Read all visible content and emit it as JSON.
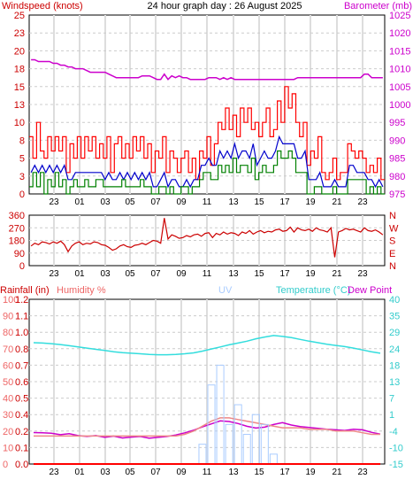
{
  "chart_data": [
    {
      "type": "line",
      "title": "24 hour graph day : 26 August 2025",
      "left_axis_label": "Windspeed (knots)",
      "right_axis_label": "Barometer (mb)",
      "left_ylim": [
        0,
        25
      ],
      "left_ticks": [
        "0",
        "3",
        "5",
        "8",
        "10",
        "13",
        "15",
        "18",
        "20",
        "23",
        "25"
      ],
      "right_ylim": [
        975,
        1025
      ],
      "right_ticks": [
        "975",
        "980",
        "985",
        "990",
        "995",
        "1000",
        "1005",
        "1010",
        "1015",
        "1020",
        "1025"
      ],
      "x_ticks": [
        "23",
        "01",
        "03",
        "05",
        "07",
        "09",
        "11",
        "13",
        "15",
        "17",
        "19",
        "21",
        "23"
      ],
      "grid": true,
      "series": [
        {
          "name": "Wind gust",
          "color": "#ff0000",
          "axis": "left",
          "style": "step",
          "values": [
            8,
            5,
            10,
            6,
            5,
            8,
            6,
            8,
            6,
            8,
            3,
            7,
            5,
            8,
            5,
            8,
            6,
            8,
            5,
            7,
            5,
            8,
            3,
            7,
            8,
            5,
            7,
            5,
            8,
            6,
            8,
            5,
            7,
            3,
            6,
            5,
            8,
            3,
            6,
            5,
            3,
            5,
            6,
            3,
            5,
            2,
            6,
            5,
            8,
            4,
            7,
            10,
            9,
            12,
            9,
            11,
            8,
            12,
            10,
            12,
            9,
            10,
            8,
            10,
            12,
            8,
            9,
            13,
            10,
            15,
            12,
            14,
            10,
            8,
            10,
            4,
            6,
            5,
            8,
            3,
            2,
            3,
            5,
            2,
            3,
            3,
            7,
            6,
            5,
            6,
            5,
            3,
            4,
            3,
            5,
            2
          ]
        },
        {
          "name": "Wind speed",
          "color": "#0000cc",
          "axis": "left",
          "style": "line",
          "values": [
            3,
            4,
            3,
            4,
            3,
            4,
            3,
            4,
            3,
            4,
            2,
            2,
            3,
            3,
            3,
            3,
            3,
            3,
            3,
            3,
            2,
            3,
            2,
            2,
            3,
            2,
            3,
            2,
            3,
            2,
            3,
            2,
            3,
            1,
            1,
            2,
            3,
            1,
            2,
            2,
            1,
            1,
            2,
            1,
            2,
            2,
            4,
            4,
            5,
            4,
            4,
            6,
            5,
            6,
            5,
            7,
            5,
            6,
            6,
            5,
            7,
            4,
            5,
            6,
            5,
            5,
            6,
            8,
            7,
            7,
            7,
            7,
            5,
            5,
            6,
            2,
            2,
            2,
            3,
            1,
            1,
            1,
            2,
            1,
            1,
            1,
            4,
            4,
            3,
            3,
            3,
            2,
            2,
            1,
            2,
            1
          ]
        },
        {
          "name": "Wind lull",
          "color": "#008000",
          "axis": "left",
          "style": "step",
          "values": [
            1,
            3,
            1,
            3,
            0,
            2,
            1,
            3,
            1,
            2,
            0,
            1,
            2,
            1,
            1,
            2,
            1,
            1,
            2,
            2,
            1,
            1,
            1,
            1,
            1,
            2,
            1,
            1,
            1,
            1,
            2,
            1,
            1,
            0,
            0,
            1,
            1,
            0,
            1,
            0,
            0,
            1,
            1,
            0,
            1,
            1,
            2,
            3,
            3,
            2,
            2,
            4,
            3,
            4,
            3,
            5,
            3,
            4,
            4,
            3,
            5,
            2,
            3,
            4,
            3,
            3,
            4,
            6,
            5,
            5,
            6,
            5,
            3,
            3,
            3,
            0,
            0,
            1,
            1,
            0,
            0,
            0,
            1,
            0,
            0,
            0,
            2,
            2,
            2,
            2,
            2,
            0,
            1,
            0,
            1,
            0
          ]
        },
        {
          "name": "Barometer",
          "color": "#cc00cc",
          "axis": "right",
          "style": "line",
          "values": [
            1012.5,
            1012.5,
            1012,
            1012,
            1012,
            1012,
            1011.5,
            1011.5,
            1011,
            1011,
            1010.5,
            1010.5,
            1010,
            1010,
            1010,
            1009.5,
            1009,
            1009,
            1009,
            1009,
            1009,
            1008.5,
            1008,
            1007.5,
            1007.5,
            1007.5,
            1007.5,
            1007.5,
            1007.5,
            1007.5,
            1008,
            1008,
            1008,
            1007.5,
            1007,
            1007,
            1008.5,
            1007,
            1008,
            1007.5,
            1008,
            1007.5,
            1007.5,
            1007,
            1007,
            1007,
            1007,
            1007,
            1007.5,
            1007.5,
            1007.5,
            1007,
            1007.5,
            1007,
            1007.5,
            1007,
            1007,
            1007,
            1007,
            1007,
            1007,
            1007,
            1007,
            1007,
            1007,
            1007,
            1007,
            1007,
            1007,
            1007,
            1007,
            1007,
            1007.5,
            1007.5,
            1007.5,
            1007.5,
            1007.5,
            1007.5,
            1007.5,
            1007.5,
            1007.5,
            1007.5,
            1007.5,
            1007.5,
            1007.5,
            1007.5,
            1007.5,
            1007.5,
            1007.5,
            1007.5,
            1008.5,
            1008.5,
            1007.5,
            1007.5,
            1007.5,
            1007.5
          ]
        }
      ]
    },
    {
      "type": "line",
      "ylim": [
        0,
        360
      ],
      "left_ticks": [
        "0",
        "90",
        "180",
        "270",
        "360"
      ],
      "right_ticks": [
        "N",
        "E",
        "S",
        "W",
        "N"
      ],
      "x_ticks": [
        "23",
        "01",
        "03",
        "05",
        "07",
        "09",
        "11",
        "13",
        "15",
        "17",
        "19",
        "21",
        "23"
      ],
      "grid": true,
      "series": [
        {
          "name": "Wind direction",
          "color": "#cc0000",
          "axis": "left",
          "style": "line",
          "values": [
            140,
            160,
            150,
            170,
            165,
            155,
            170,
            160,
            175,
            150,
            100,
            140,
            160,
            170,
            150,
            160,
            155,
            170,
            165,
            150,
            145,
            130,
            110,
            120,
            140,
            150,
            135,
            130,
            145,
            150,
            160,
            150,
            165,
            180,
            175,
            160,
            340,
            190,
            220,
            210,
            195,
            200,
            215,
            205,
            220,
            225,
            210,
            230,
            235,
            200,
            230,
            220,
            240,
            225,
            235,
            230,
            215,
            240,
            230,
            250,
            225,
            240,
            250,
            235,
            245,
            240,
            255,
            260,
            245,
            250,
            275,
            240,
            270,
            255,
            250,
            260,
            245,
            270,
            255,
            250,
            240,
            270,
            60,
            240,
            250,
            265,
            255,
            260,
            250,
            240,
            270,
            250,
            245,
            255,
            240,
            220
          ]
        }
      ]
    },
    {
      "type": "line",
      "labels": {
        "rainfall": "Rainfall (in)",
        "humidity": "Humidity %",
        "uv": "UV",
        "temperature": "Temperature (°C)",
        "dewpoint": "Dew Point"
      },
      "rain_ticks": [
        "0.0",
        "0.1",
        "0.2",
        "0.4",
        "0.5",
        "0.6",
        "0.7",
        "0.8",
        "1.0",
        "1.1",
        "1.2"
      ],
      "rain_ylim": [
        0,
        1.2
      ],
      "humidity_ticks": [
        "0",
        "10",
        "20",
        "30",
        "40",
        "50",
        "60",
        "70",
        "80",
        "90",
        "100"
      ],
      "humidity_ylim": [
        0,
        100
      ],
      "temp_ticks": [
        "-15",
        "-10",
        "-4",
        "1",
        "7",
        "13",
        "18",
        "24",
        "29",
        "35",
        "40"
      ],
      "temp_ylim": [
        -15,
        40
      ],
      "x_ticks": [
        "23",
        "01",
        "03",
        "05",
        "07",
        "09",
        "11",
        "13",
        "15",
        "17",
        "19",
        "21",
        "23"
      ],
      "grid": true,
      "series": [
        {
          "name": "Temperature",
          "color": "#33dddd",
          "axis": "temp",
          "values": [
            25.5,
            25.4,
            25.2,
            24.9,
            24.5,
            24.1,
            23.7,
            23.3,
            22.9,
            22.5,
            22.2,
            22,
            21.8,
            21.6,
            21.5,
            21.5,
            21.6,
            21.8,
            22.1,
            22.7,
            23.4,
            24.1,
            24.8,
            25.4,
            26,
            26.8,
            27.4,
            27.9,
            27.6,
            27.2,
            26.6,
            26,
            25.5,
            25,
            24.6,
            24.2,
            23.7,
            23.1,
            22.5,
            22
          ]
        },
        {
          "name": "Dew Point",
          "color": "#cc00cc",
          "axis": "temp",
          "values": [
            -4.5,
            -4.6,
            -4.7,
            -5.2,
            -4.9,
            -5.5,
            -5.8,
            -5.5,
            -6.1,
            -5.7,
            -6.3,
            -6,
            -5.8,
            -6.4,
            -6.1,
            -5.8,
            -5.3,
            -4.6,
            -3.7,
            -2.6,
            -1.6,
            -0.6,
            -0.8,
            -1.5,
            -2.4,
            -3,
            -2.7,
            -1.8,
            -1.2,
            -2,
            -2.5,
            -2.8,
            -3.1,
            -3.4,
            -3.6,
            -3.8,
            -3.4,
            -3.6,
            -4.4,
            -5
          ]
        },
        {
          "name": "Humidity",
          "color": "#ee8888",
          "axis": "humidity",
          "values": [
            17,
            17,
            17,
            17,
            17,
            17,
            17,
            17,
            17,
            17,
            17,
            17,
            17,
            17,
            17,
            17,
            17,
            18,
            20,
            23,
            26,
            28,
            28,
            27,
            26,
            25,
            24,
            23,
            22,
            22,
            22,
            21,
            21,
            21,
            20,
            20,
            20,
            19,
            18,
            18
          ]
        },
        {
          "name": "UV",
          "color": "#aaccff",
          "axis": "uv",
          "values": [
            0,
            0,
            0,
            0,
            0,
            0,
            0,
            0,
            0,
            0,
            0,
            0,
            0,
            0,
            0,
            0,
            0,
            0,
            0,
            0.2,
            0.8,
            1,
            0.4,
            0.6,
            0.3,
            0.5,
            0.4,
            0.1,
            0,
            0,
            0,
            0,
            0,
            0,
            0,
            0,
            0,
            0,
            0,
            0
          ]
        },
        {
          "name": "Rainfall",
          "color": "#ff0000",
          "axis": "rain",
          "values": [
            0,
            0,
            0,
            0,
            0,
            0,
            0,
            0,
            0,
            0,
            0,
            0,
            0,
            0,
            0,
            0,
            0,
            0,
            0,
            0,
            0,
            0,
            0,
            0,
            0,
            0,
            0,
            0,
            0,
            0,
            0,
            0,
            0,
            0,
            0,
            0,
            0,
            0,
            0,
            0
          ]
        }
      ]
    }
  ]
}
